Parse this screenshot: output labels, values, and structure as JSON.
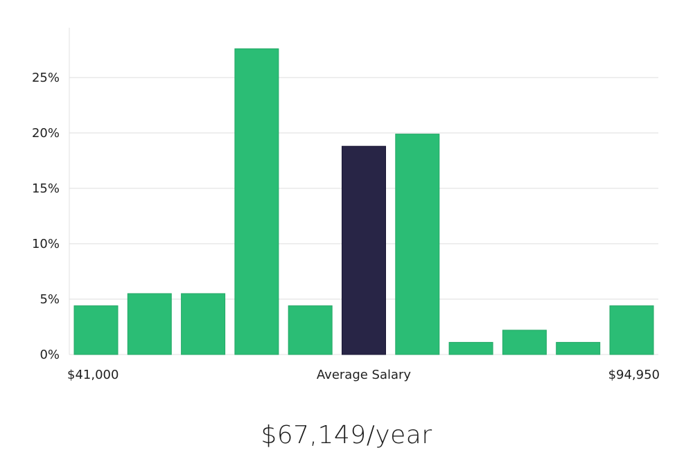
{
  "chart_data": {
    "type": "bar",
    "values": [
      4.4,
      5.5,
      5.5,
      27.6,
      4.4,
      18.8,
      19.9,
      1.1,
      2.2,
      1.1,
      4.4
    ],
    "highlight_index": 5,
    "ylim": [
      0,
      29.5
    ],
    "y_ticks": [
      {
        "value": 0,
        "label": "0%"
      },
      {
        "value": 5,
        "label": "5%"
      },
      {
        "value": 10,
        "label": "10%"
      },
      {
        "value": 15,
        "label": "15%"
      },
      {
        "value": 20,
        "label": "20%"
      },
      {
        "value": 25,
        "label": "25%"
      }
    ],
    "x_labels": {
      "left": "$41,000",
      "center": "Average Salary",
      "right": "$94,950"
    },
    "grid": true,
    "colors": {
      "bar": "#2bbd75",
      "highlight": "#282546",
      "grid": "#dcdcdc",
      "axis": "#e0e0e0"
    }
  },
  "summary": {
    "salary_text": "$67,149/year"
  }
}
